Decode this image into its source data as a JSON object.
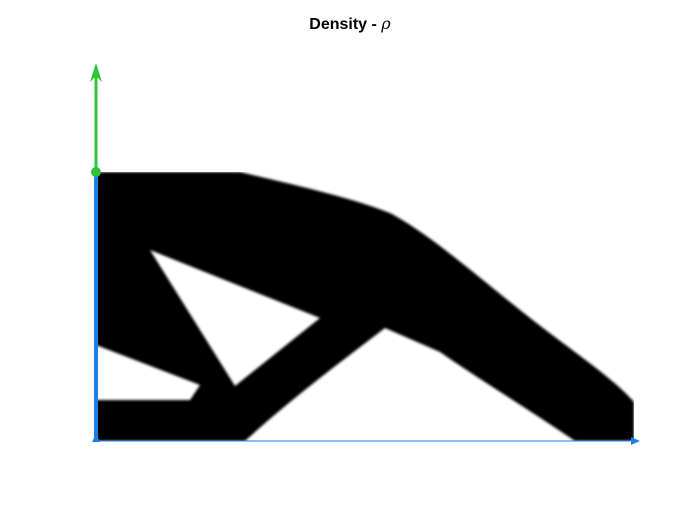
{
  "title": {
    "text": "Density - ",
    "symbol": "ρ"
  },
  "colors": {
    "material": "#000000",
    "background": "#ffffff",
    "load_arrow": "#2ec43a",
    "boundary": "#1a80e8"
  },
  "icons": {
    "load": "arrow-up-icon",
    "support": "fixed-support-line",
    "roller": "arrow-right-icon"
  }
}
